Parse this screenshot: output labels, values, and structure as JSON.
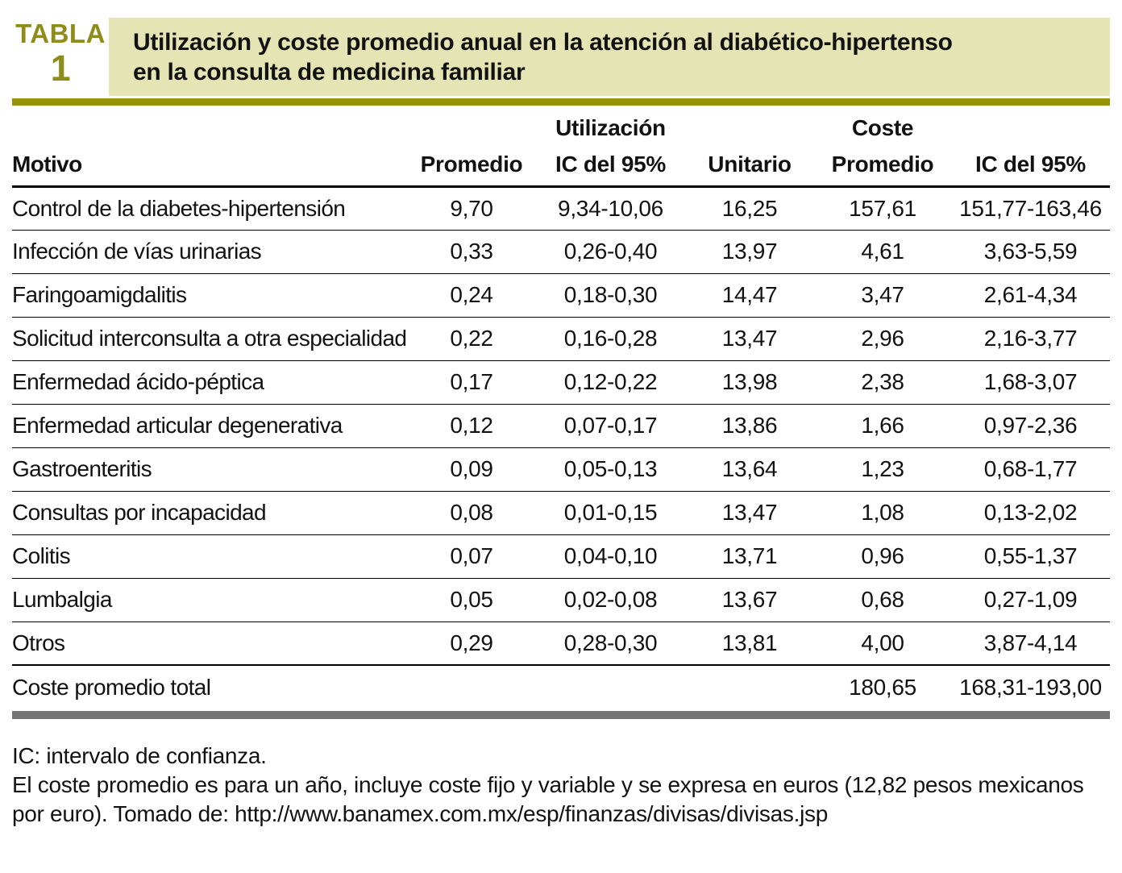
{
  "colors": {
    "olive": "#8e8c1b",
    "olive_bar": "#98940a",
    "khaki": "#e5e4b4",
    "gray_bar": "#757575",
    "text": "#121212"
  },
  "badge": {
    "label": "TABLA",
    "number": "1"
  },
  "title": {
    "line1": "Utilización y coste promedio anual en la atención al diabético-hipertenso",
    "line2": "en la consulta de medicina familiar"
  },
  "table": {
    "group_headers": {
      "utilizacion": "Utilización",
      "coste": "Coste"
    },
    "columns": {
      "motivo": "Motivo",
      "promedio_utilizacion": "Promedio",
      "ic95_utilizacion": "IC del 95%",
      "coste_unitario": "Unitario",
      "coste_promedio": "Promedio",
      "ic95_coste": "IC del 95%"
    },
    "rows": [
      {
        "motivo": "Control de la diabetes-hipertensión",
        "promedio": "9,70",
        "ic_utilizacion": "9,34-10,06",
        "unitario": "16,25",
        "coste_promedio": "157,61",
        "ic_coste": "151,77-163,46"
      },
      {
        "motivo": "Infección de vías urinarias",
        "promedio": "0,33",
        "ic_utilizacion": "0,26-0,40",
        "unitario": "13,97",
        "coste_promedio": "4,61",
        "ic_coste": "3,63-5,59"
      },
      {
        "motivo": "Faringoamigdalitis",
        "promedio": "0,24",
        "ic_utilizacion": "0,18-0,30",
        "unitario": "14,47",
        "coste_promedio": "3,47",
        "ic_coste": "2,61-4,34"
      },
      {
        "motivo": "Solicitud interconsulta a otra especialidad",
        "promedio": "0,22",
        "ic_utilizacion": "0,16-0,28",
        "unitario": "13,47",
        "coste_promedio": "2,96",
        "ic_coste": "2,16-3,77"
      },
      {
        "motivo": "Enfermedad ácido-péptica",
        "promedio": "0,17",
        "ic_utilizacion": "0,12-0,22",
        "unitario": "13,98",
        "coste_promedio": "2,38",
        "ic_coste": "1,68-3,07"
      },
      {
        "motivo": "Enfermedad articular degenerativa",
        "promedio": "0,12",
        "ic_utilizacion": "0,07-0,17",
        "unitario": "13,86",
        "coste_promedio": "1,66",
        "ic_coste": "0,97-2,36"
      },
      {
        "motivo": "Gastroenteritis",
        "promedio": "0,09",
        "ic_utilizacion": "0,05-0,13",
        "unitario": "13,64",
        "coste_promedio": "1,23",
        "ic_coste": "0,68-1,77"
      },
      {
        "motivo": "Consultas por incapacidad",
        "promedio": "0,08",
        "ic_utilizacion": "0,01-0,15",
        "unitario": "13,47",
        "coste_promedio": "1,08",
        "ic_coste": "0,13-2,02"
      },
      {
        "motivo": "Colitis",
        "promedio": "0,07",
        "ic_utilizacion": "0,04-0,10",
        "unitario": "13,71",
        "coste_promedio": "0,96",
        "ic_coste": "0,55-1,37"
      },
      {
        "motivo": "Lumbalgia",
        "promedio": "0,05",
        "ic_utilizacion": "0,02-0,08",
        "unitario": "13,67",
        "coste_promedio": "0,68",
        "ic_coste": "0,27-1,09"
      },
      {
        "motivo": "Otros",
        "promedio": "0,29",
        "ic_utilizacion": "0,28-0,30",
        "unitario": "13,81",
        "coste_promedio": "4,00",
        "ic_coste": "3,87-4,14"
      }
    ],
    "total_row": {
      "motivo": "Coste promedio total",
      "promedio": "",
      "ic_utilizacion": "",
      "unitario": "",
      "coste_promedio": "180,65",
      "ic_coste": "168,31-193,00"
    }
  },
  "footnotes": {
    "line1": "IC: intervalo de confianza.",
    "line2": "El coste promedio es para un año, incluye coste fijo y variable y se expresa en euros (12,82 pesos mexicanos por euro). Tomado de: http://www.banamex.com.mx/esp/finanzas/divisas/divisas.jsp"
  }
}
